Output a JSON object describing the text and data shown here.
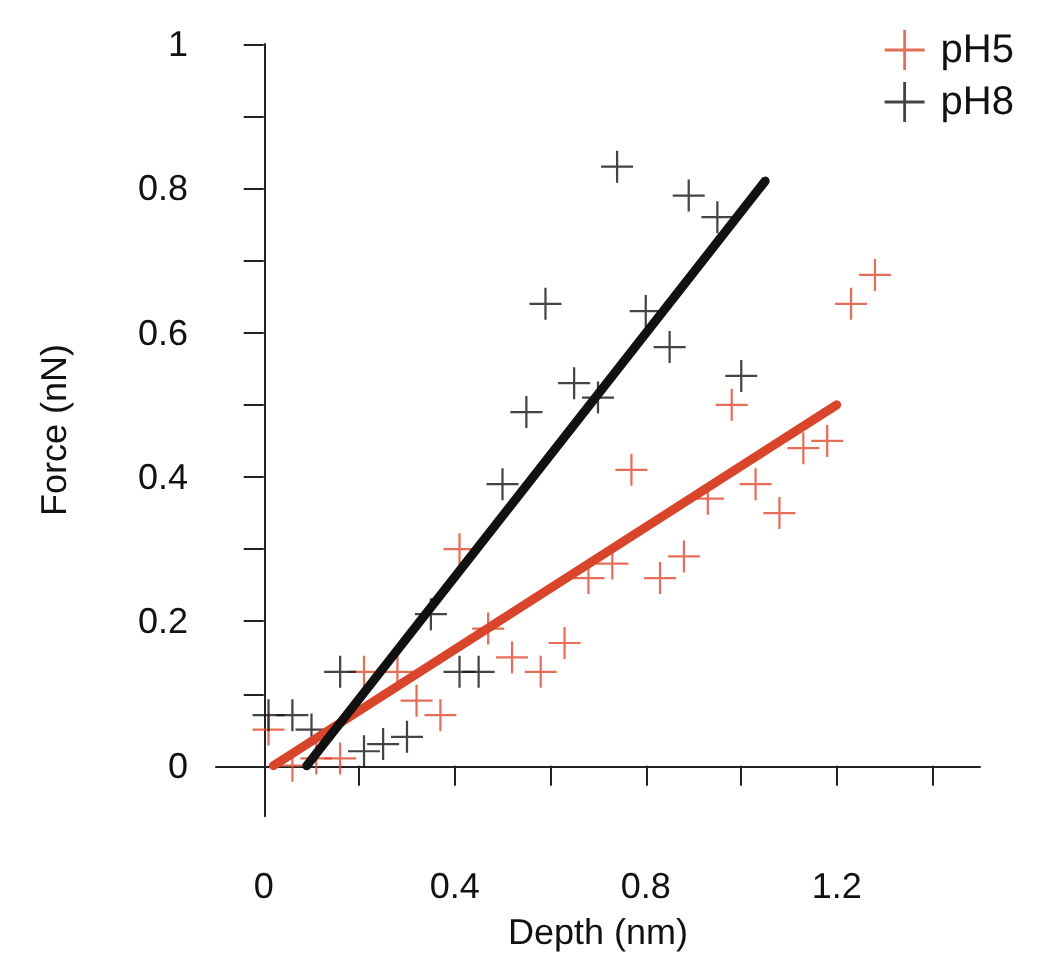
{
  "chart_data": {
    "type": "scatter",
    "xlabel": "Depth (nm)",
    "ylabel": "Force (nN)",
    "xlim": [
      -0.1,
      1.5
    ],
    "xticks": [
      0,
      {
        "value": 0.2,
        "label": null
      },
      0.4,
      {
        "value": 0.6,
        "label": null
      },
      0.8,
      {
        "value": 1.0,
        "label": null
      },
      1.2,
      {
        "value": 1.4,
        "label": null
      }
    ],
    "ylim": [
      -0.07,
      1
    ],
    "yticks": [
      0,
      {
        "value": 0.1,
        "label": null
      },
      0.2,
      {
        "value": 0.3,
        "label": null
      },
      0.4,
      {
        "value": 0.5,
        "label": null
      },
      0.6,
      {
        "value": 0.7,
        "label": null
      },
      0.8,
      {
        "value": 0.9,
        "label": null
      },
      1
    ],
    "legend": "top right",
    "marker": "cross",
    "series": [
      {
        "name": "pH5",
        "color": "#e04a30",
        "x": [
          1.28,
          1.23,
          0.98,
          0.77,
          1.13,
          1.18,
          0.93,
          1.03,
          1.08,
          0.73,
          0.68,
          0.88,
          0.83,
          0.63,
          0.52,
          0.58,
          0.47,
          0.41,
          0.32,
          0.37,
          0.21,
          0.28,
          0.01,
          0.16,
          0.11,
          0.06
        ],
        "values": [
          0.68,
          0.64,
          0.5,
          0.41,
          0.44,
          0.45,
          0.37,
          0.39,
          0.35,
          0.28,
          0.26,
          0.29,
          0.26,
          0.17,
          0.15,
          0.13,
          0.19,
          0.3,
          0.09,
          0.07,
          0.13,
          0.13,
          0.05,
          0.01,
          0.01,
          0.0
        ]
      },
      {
        "name": "pH8",
        "color": "#151515",
        "x": [
          0.74,
          0.89,
          0.95,
          0.59,
          0.8,
          0.85,
          1.0,
          0.65,
          0.7,
          0.55,
          0.5,
          0.35,
          0.41,
          0.45,
          0.16,
          0.01,
          0.06,
          0.1,
          0.21,
          0.25,
          0.3
        ],
        "values": [
          0.83,
          0.79,
          0.76,
          0.64,
          0.63,
          0.58,
          0.54,
          0.53,
          0.51,
          0.49,
          0.39,
          0.21,
          0.13,
          0.13,
          0.13,
          0.07,
          0.07,
          0.05,
          0.02,
          0.03,
          0.04
        ]
      },
      {
        "type": "line",
        "marker": "none",
        "color": "#d9452b",
        "x": [
          0.02,
          1.2
        ],
        "values": [
          0,
          0.5
        ]
      },
      {
        "type": "line",
        "marker": "none",
        "color": "#111111",
        "x": [
          0.09,
          1.05
        ],
        "values": [
          0,
          0.81
        ]
      }
    ]
  }
}
